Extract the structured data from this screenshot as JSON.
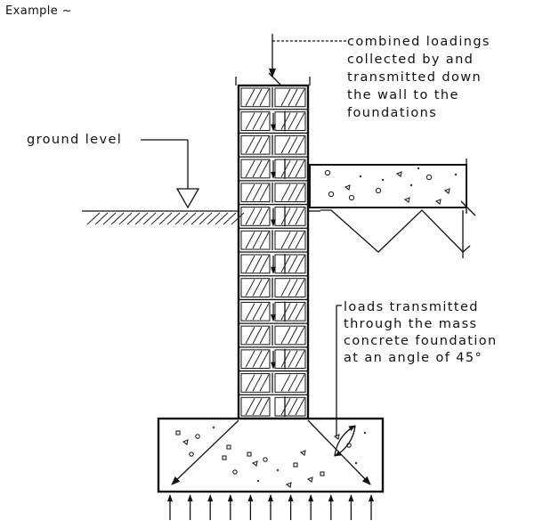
{
  "title": "Example ~",
  "labels": {
    "top": [
      "combined loadings",
      "collected by and",
      "transmitted down",
      "the wall to the",
      "foundations"
    ],
    "ground": "ground level",
    "bottom": [
      "loads transmitted",
      "through the mass",
      "concrete foundation",
      "at an angle of 45°"
    ]
  }
}
